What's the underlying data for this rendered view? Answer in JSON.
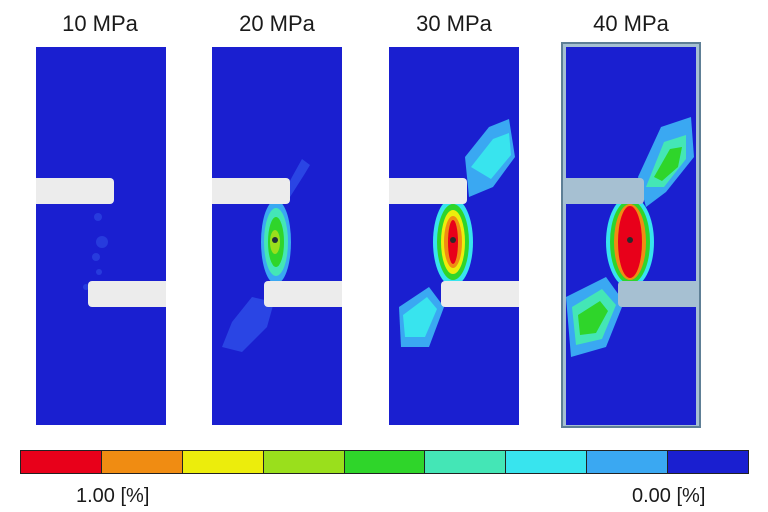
{
  "panels": [
    {
      "label": "10 MPa",
      "level": 0
    },
    {
      "label": "20 MPa",
      "level": 1
    },
    {
      "label": "30 MPa",
      "level": 2
    },
    {
      "label": "40 MPa",
      "level": 3,
      "highlighted": true
    }
  ],
  "colorbar": {
    "max_label": "1.00 [%]",
    "min_label": "0.00 [%]",
    "colors": [
      "#e8001a",
      "#f08c12",
      "#eced0c",
      "#9adf1c",
      "#2fd52a",
      "#44e6b6",
      "#38e4ee",
      "#3aa8f2",
      "#1a1fd0"
    ]
  },
  "colors": {
    "background_field": "#1a1fd0",
    "notch": "#ececec",
    "highlight_frame": "#a6c0d2",
    "highlight_border": "#5e7f96"
  }
}
